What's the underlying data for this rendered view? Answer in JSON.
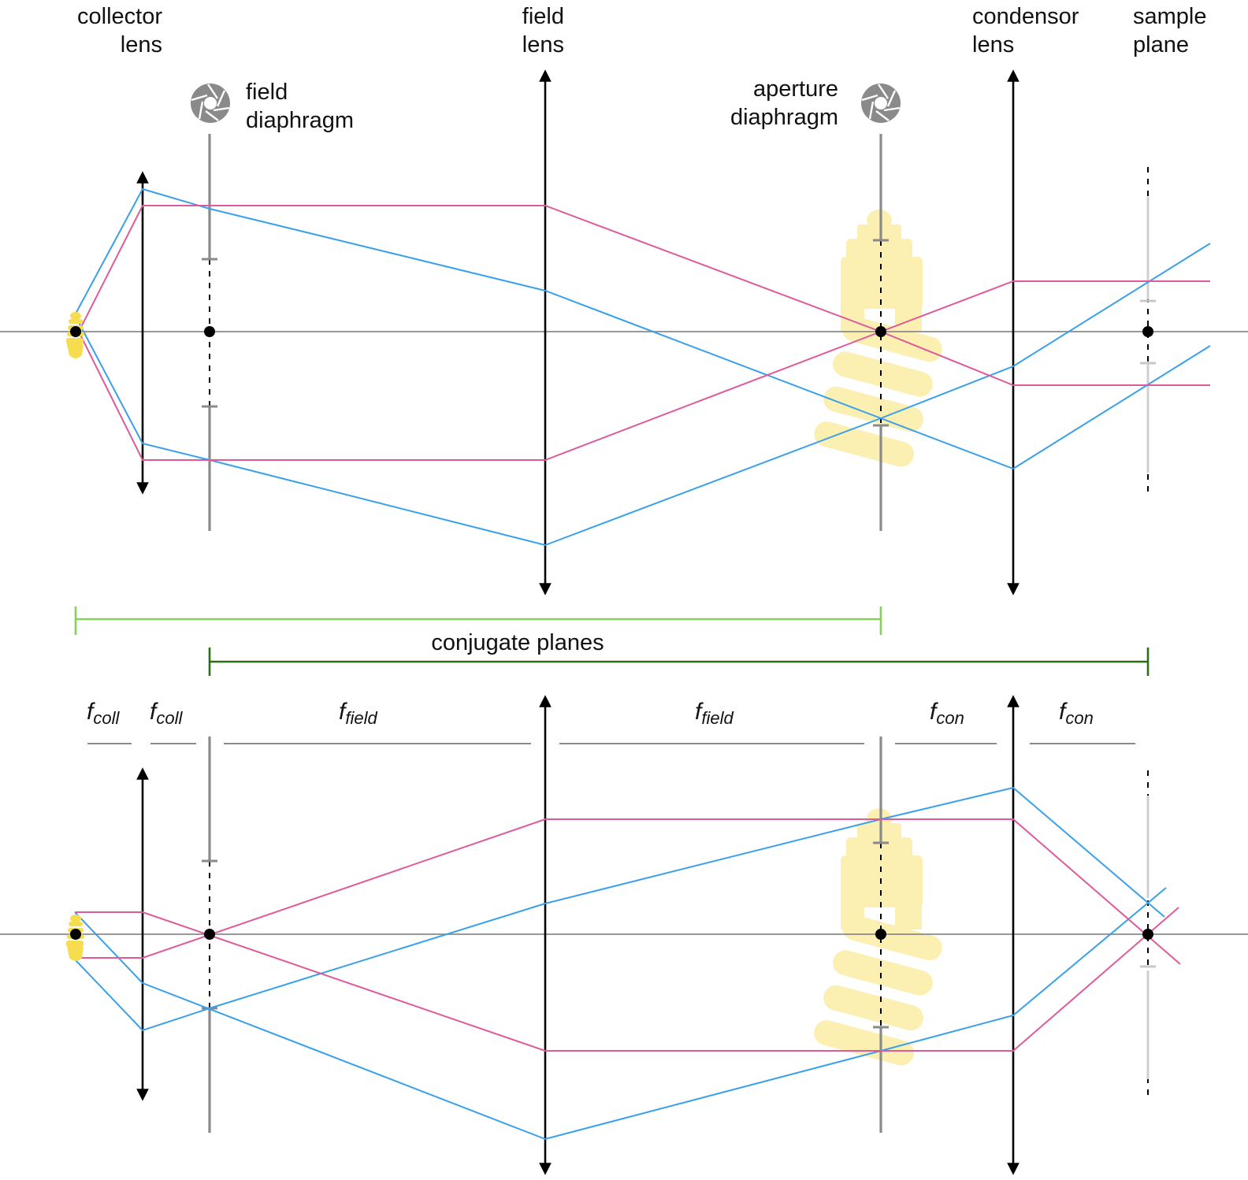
{
  "labels": {
    "collector_lens": [
      "collector",
      "lens"
    ],
    "field_lens": [
      "field",
      "lens"
    ],
    "condensor_lens": [
      "condensor",
      "lens"
    ],
    "sample_plane": [
      "sample",
      "plane"
    ],
    "field_diaphragm": [
      "field",
      "diaphragm"
    ],
    "aperture_diaphragm": [
      "aperture",
      "diaphragm"
    ],
    "conjugate_planes": "conjugate planes"
  },
  "focal_labels": [
    {
      "f": "f",
      "sub": "coll"
    },
    {
      "f": "f",
      "sub": "coll"
    },
    {
      "f": "f",
      "sub": "field"
    },
    {
      "f": "f",
      "sub": "field"
    },
    {
      "f": "f",
      "sub": "con"
    },
    {
      "f": "f",
      "sub": "con"
    }
  ],
  "colors": {
    "ray_blue": "#3aa0ea",
    "ray_pink": "#de5a9a",
    "conjugate_light_green": "#86d159",
    "conjugate_dark_green": "#2a6e18",
    "bulb_yellow": "#f6dd4f",
    "bulb_image_yellow": "#fbefb2",
    "diaphragm_gray": "#8a8a8a"
  },
  "icons": [
    "aperture-icon",
    "light-bulb-icon"
  ]
}
